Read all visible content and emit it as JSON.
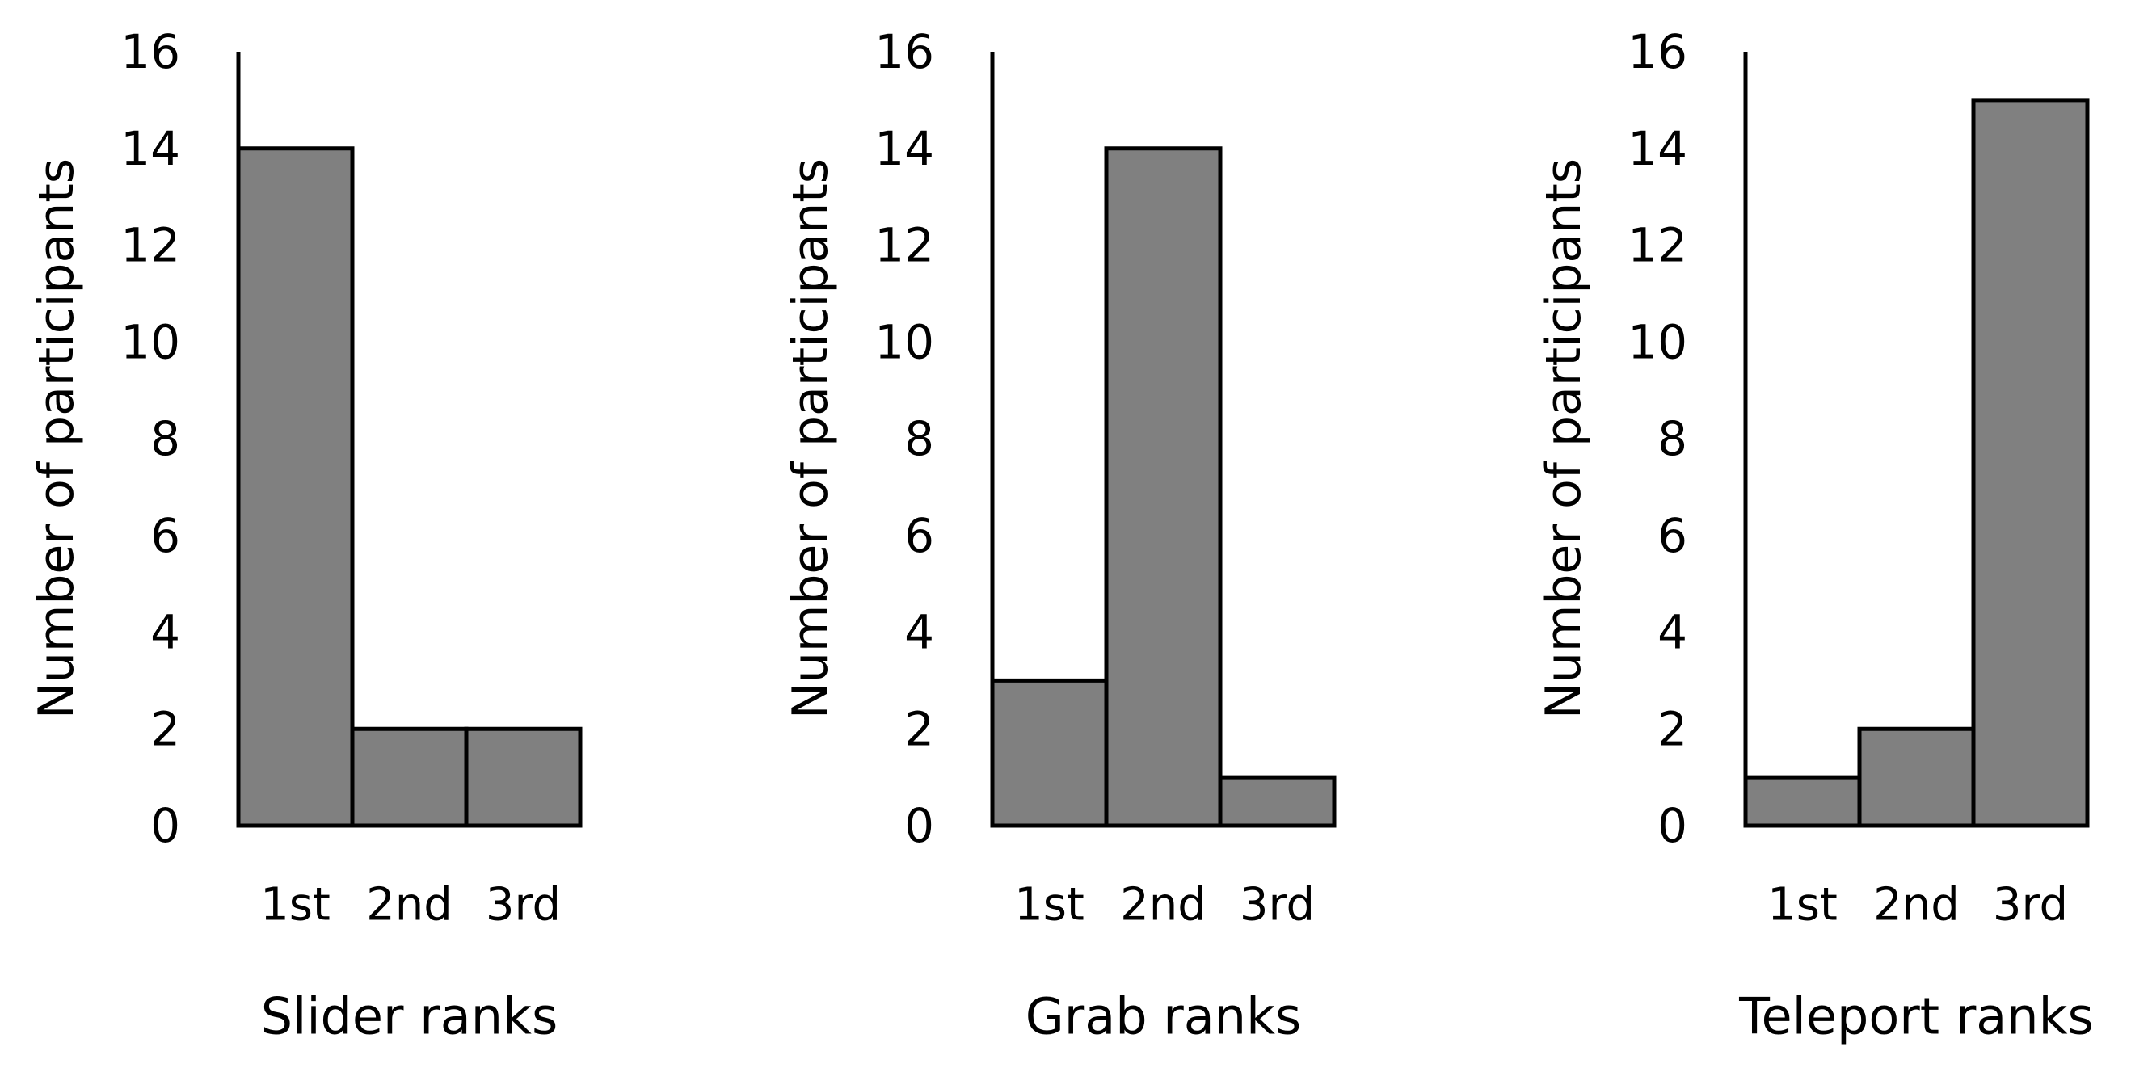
{
  "chart_data": [
    {
      "type": "bar",
      "categories": [
        "1st",
        "2nd",
        "3rd"
      ],
      "values": [
        14,
        2,
        2
      ],
      "xlabel": "Slider ranks",
      "ylabel": "Number of participants",
      "ylim": [
        0,
        16
      ],
      "yticks": [
        "0",
        "2",
        "4",
        "6",
        "8",
        "10",
        "12",
        "14",
        "16"
      ],
      "grid": false,
      "legend": "none"
    },
    {
      "type": "bar",
      "categories": [
        "1st",
        "2nd",
        "3rd"
      ],
      "values": [
        3,
        14,
        1
      ],
      "xlabel": "Grab ranks",
      "ylabel": "Number of participants",
      "ylim": [
        0,
        16
      ],
      "yticks": [
        "0",
        "2",
        "4",
        "6",
        "8",
        "10",
        "12",
        "14",
        "16"
      ],
      "grid": false,
      "legend": "none"
    },
    {
      "type": "bar",
      "categories": [
        "1st",
        "2nd",
        "3rd"
      ],
      "values": [
        1,
        2,
        15
      ],
      "xlabel": "Teleport ranks",
      "ylabel": "Number of participants",
      "ylim": [
        0,
        16
      ],
      "yticks": [
        "0",
        "2",
        "4",
        "6",
        "8",
        "10",
        "12",
        "14",
        "16"
      ],
      "grid": false,
      "legend": "none"
    }
  ],
  "colors": {
    "bar_fill": "#808080",
    "bar_stroke": "#000000",
    "axis": "#000000",
    "text": "#000000"
  }
}
